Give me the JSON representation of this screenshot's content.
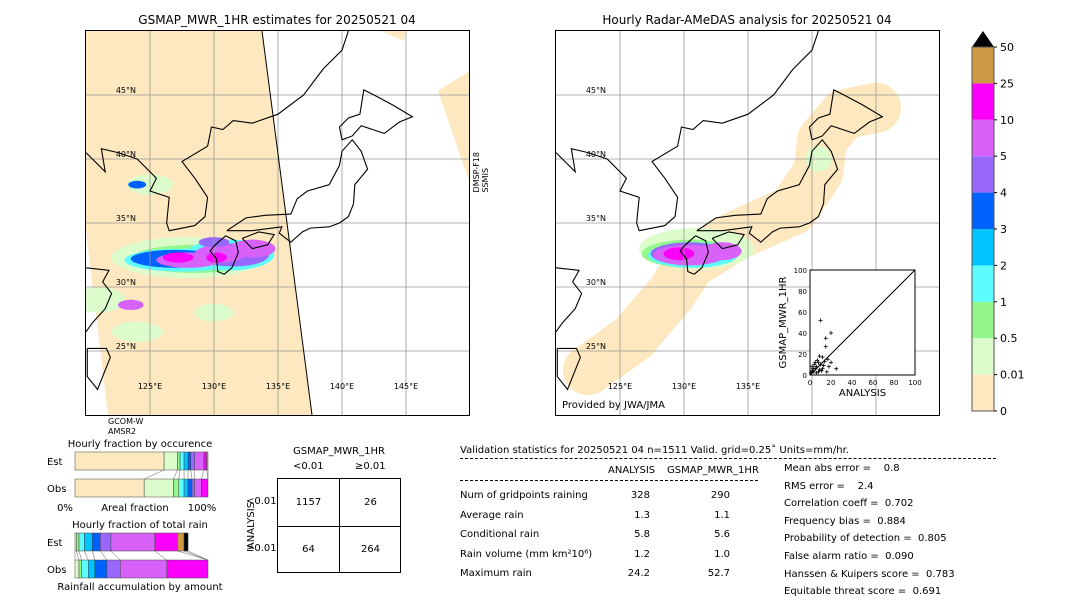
{
  "left_map": {
    "title": "GSMAP_MWR_1HR estimates for 20250521 04",
    "sat_right": [
      "DMSP-F18",
      "SSMIS"
    ],
    "sat_bottom": [
      "GCOM-W",
      "AMSR2"
    ],
    "lat_labels": [
      "45°N",
      "40°N",
      "35°N",
      "30°N",
      "25°N"
    ],
    "lon_labels": [
      "125°E",
      "130°E",
      "135°E",
      "140°E",
      "145°E"
    ]
  },
  "right_map": {
    "title": "Hourly Radar-AMeDAS analysis for 20250521 04",
    "credit": "Provided by JWA/JMA",
    "lat_labels": [
      "45°N",
      "40°N",
      "35°N",
      "30°N",
      "25°N"
    ],
    "lon_labels": [
      "125°E",
      "130°E",
      "135°E"
    ]
  },
  "colorbar": {
    "labels": [
      "0",
      "0.01",
      "0.5",
      "1",
      "2",
      "3",
      "4",
      "5",
      "10",
      "25",
      "50"
    ],
    "colors": [
      "#fde8c0",
      "#dcfccc",
      "#94f78a",
      "#5cfdfc",
      "#00c4fd",
      "#0062fd",
      "#9868fd",
      "#d862f9",
      "#fc00fc",
      "#cc9944"
    ]
  },
  "chart_data": [
    {
      "type": "scatter",
      "xlabel": "ANALYSIS",
      "ylabel": "GSMAP_MWR_1HR",
      "xlim": [
        0,
        100
      ],
      "ylim": [
        0,
        100
      ],
      "ticks": [
        "0",
        "20",
        "40",
        "60",
        "80",
        "100"
      ],
      "points": [
        [
          10,
          52
        ],
        [
          20,
          40
        ],
        [
          15,
          35
        ],
        [
          15,
          27
        ],
        [
          25,
          6
        ],
        [
          20,
          12
        ],
        [
          18,
          8
        ],
        [
          12,
          17
        ],
        [
          8,
          12
        ],
        [
          5,
          6
        ],
        [
          3,
          3
        ],
        [
          2,
          8
        ],
        [
          6,
          2
        ],
        [
          9,
          5
        ],
        [
          4,
          10
        ],
        [
          11,
          4
        ],
        [
          13,
          9
        ],
        [
          7,
          14
        ],
        [
          1,
          2
        ],
        [
          3,
          6
        ],
        [
          16,
          3
        ],
        [
          14,
          13
        ],
        [
          10,
          10
        ],
        [
          6,
          8
        ],
        [
          2,
          4
        ],
        [
          8,
          3
        ],
        [
          5,
          12
        ],
        [
          12,
          6
        ],
        [
          17,
          15
        ],
        [
          9,
          18
        ]
      ]
    },
    {
      "type": "bar",
      "title": "Hourly fraction by occurence",
      "xlabel": "Areal fraction",
      "tick_left": "0%",
      "tick_right": "100%",
      "categories": [
        "Est",
        "Obs"
      ],
      "series": [
        {
          "name": "Est",
          "cum": [
            0.67,
            0.77,
            0.79,
            0.82,
            0.85,
            0.87,
            0.9,
            0.97,
            0.99,
            1.0
          ]
        },
        {
          "name": "Obs",
          "cum": [
            0.52,
            0.74,
            0.78,
            0.82,
            0.85,
            0.88,
            0.9,
            0.95,
            1.0,
            1.0
          ]
        }
      ]
    },
    {
      "type": "bar",
      "title": "Hourly fraction of total rain",
      "xlabel": "Rainfall accumulation by amount",
      "categories": [
        "Est",
        "Obs"
      ],
      "series": [
        {
          "name": "Est",
          "cum": [
            0.0,
            0.01,
            0.03,
            0.07,
            0.13,
            0.19,
            0.27,
            0.6,
            0.77,
            0.82,
            0.85
          ]
        },
        {
          "name": "Obs",
          "cum": [
            0.0,
            0.03,
            0.05,
            0.1,
            0.15,
            0.24,
            0.34,
            0.69,
            1.0,
            1.0,
            1.0
          ]
        }
      ]
    }
  ],
  "contingency": {
    "title": "GSMAP_MWR_1HR",
    "col_labels": [
      "<0.01",
      "≥0.01"
    ],
    "row_title": "ANALYSIS",
    "row_labels": [
      "<0.01",
      "≥0.01"
    ],
    "cells": [
      [
        "1157",
        "26"
      ],
      [
        "64",
        "264"
      ]
    ]
  },
  "stats": {
    "header": "Validation statistics for 20250521 04  n=1511 Valid. grid=0.25˚ Units=mm/hr.",
    "col_headers": [
      "ANALYSIS",
      "GSMAP_MWR_1HR"
    ],
    "rows": [
      {
        "label": "Num of gridpoints raining",
        "a": "328",
        "g": "290"
      },
      {
        "label": "Average rain",
        "a": "1.3",
        "g": "1.1"
      },
      {
        "label": "Conditional rain",
        "a": "5.8",
        "g": "5.6"
      },
      {
        "label": "Rain volume (mm km²10⁶)",
        "a": "1.2",
        "g": "1.0"
      },
      {
        "label": "Maximum rain",
        "a": "24.2",
        "g": "52.7"
      }
    ],
    "scores": [
      "Mean abs error =    0.8",
      "RMS error =    2.4",
      "Correlation coeff =  0.702",
      "Frequency bias =  0.884",
      "Probability of detection =  0.805",
      "False alarm ratio =  0.090",
      "Hanssen & Kuipers score =  0.783",
      "Equitable threat score =  0.691"
    ]
  }
}
